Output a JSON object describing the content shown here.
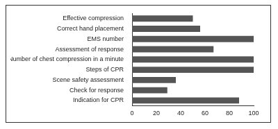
{
  "chart_data": {
    "type": "bar",
    "orientation": "horizontal",
    "categories": [
      "Effective compression",
      "Correct hand placement",
      "EMS number",
      "Assessment of response",
      "Number of chest compression in a minute",
      "Steps of CPR",
      "Scene safety assessment",
      "Check for response",
      "Indication for CPR"
    ],
    "values": [
      50,
      56,
      100,
      67,
      100,
      100,
      36,
      29,
      88
    ],
    "color": "#555555",
    "xlim": [
      0,
      100
    ],
    "xticks": [
      0,
      20,
      40,
      60,
      80,
      100
    ],
    "grid": false
  }
}
